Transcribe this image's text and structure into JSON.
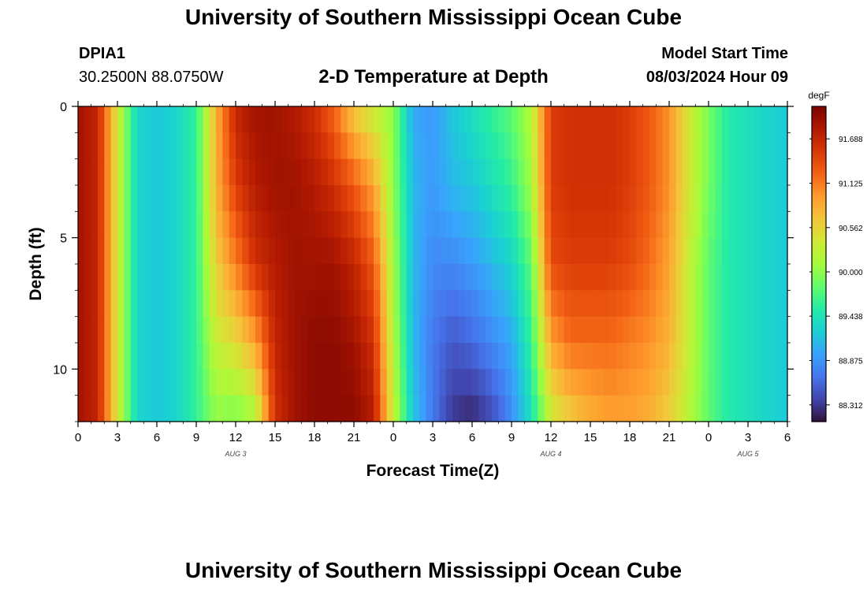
{
  "page": {
    "title": "University of Southern Mississippi Ocean Cube",
    "footer_title": "University of Southern Mississippi Ocean Cube",
    "station": "DPIA1",
    "coords": "30.2500N  88.0750W",
    "plot_title": "2-D Temperature at Depth",
    "model_start_label": "Model Start Time",
    "model_start_value": "08/03/2024 Hour 09"
  },
  "chart_data": {
    "type": "heatmap",
    "title": "2-D Temperature at Depth",
    "xlabel": "Forecast Time(Z)",
    "ylabel": "Depth (ft)",
    "x_ticks": [
      "0",
      "3",
      "6",
      "9",
      "12",
      "15",
      "18",
      "21",
      "0",
      "3",
      "6",
      "9",
      "12",
      "15",
      "18",
      "21",
      "0",
      "3",
      "6"
    ],
    "x_range_hours": [
      0,
      54
    ],
    "date_labels": [
      {
        "label": "AUG 3",
        "hour": 12
      },
      {
        "label": "AUG 4",
        "hour": 36
      },
      {
        "label": "AUG 5",
        "hour": 51
      }
    ],
    "y_ticks": [
      0,
      5,
      10
    ],
    "y_range_ft": [
      0,
      12
    ],
    "y_inverted": true,
    "colorbar": {
      "unit": "degF",
      "ticks": [
        "91.688",
        "91.125",
        "90.562",
        "90.000",
        "89.438",
        "88.875",
        "88.312"
      ],
      "min": 88.1,
      "max": 92.1,
      "colors": [
        "#30123b",
        "#4145ab",
        "#4675ed",
        "#39a2fc",
        "#1bcfd4",
        "#24eca6",
        "#61fc6c",
        "#a4fc3b",
        "#d1e834",
        "#f3c63a",
        "#fe9b2d",
        "#f36315",
        "#d93806",
        "#b11901",
        "#7a0402"
      ]
    },
    "x_hours": [
      0,
      1.5,
      3,
      4.5,
      6,
      7.5,
      9,
      10.5,
      12,
      13.5,
      15,
      16.5,
      18,
      19.5,
      21,
      22.5,
      24,
      25.5,
      27,
      28.5,
      30,
      31.5,
      33,
      34.5,
      36,
      37.5,
      39,
      40.5,
      42,
      43.5,
      45,
      46.5,
      48,
      49.5,
      51,
      52.5,
      54
    ],
    "depths_ft": [
      0,
      3,
      6,
      9,
      12
    ],
    "values_degF": [
      [
        91.9,
        91.7,
        90.4,
        89.3,
        89.2,
        89.3,
        89.6,
        90.8,
        91.7,
        91.9,
        91.9,
        91.8,
        91.6,
        91.2,
        90.6,
        90.3,
        90.0,
        89.0,
        88.9,
        89.2,
        89.4,
        89.6,
        89.8,
        90.2,
        91.5,
        91.6,
        91.6,
        91.6,
        91.5,
        91.3,
        91.0,
        90.4,
        89.9,
        89.5,
        89.4,
        89.3,
        89.2
      ],
      [
        91.9,
        91.7,
        90.4,
        89.3,
        89.2,
        89.3,
        89.6,
        90.8,
        91.5,
        91.8,
        91.9,
        91.9,
        91.8,
        91.6,
        91.3,
        90.9,
        90.0,
        89.1,
        88.9,
        89.1,
        89.2,
        89.4,
        89.6,
        90.1,
        91.5,
        91.6,
        91.6,
        91.6,
        91.5,
        91.3,
        91.0,
        90.4,
        89.9,
        89.5,
        89.4,
        89.3,
        89.2
      ],
      [
        91.9,
        91.7,
        90.4,
        89.3,
        89.2,
        89.3,
        89.6,
        90.6,
        91.1,
        91.6,
        91.8,
        91.9,
        91.9,
        91.9,
        91.7,
        91.3,
        90.1,
        89.1,
        88.8,
        88.8,
        88.9,
        89.1,
        89.3,
        89.8,
        91.4,
        91.5,
        91.5,
        91.5,
        91.4,
        91.2,
        90.9,
        90.3,
        89.8,
        89.5,
        89.4,
        89.3,
        89.2
      ],
      [
        91.9,
        91.7,
        90.4,
        89.3,
        89.2,
        89.3,
        89.6,
        90.3,
        90.5,
        90.9,
        91.7,
        91.9,
        92.0,
        92.0,
        91.9,
        91.6,
        90.2,
        89.1,
        88.7,
        88.5,
        88.6,
        88.8,
        89.0,
        89.6,
        90.9,
        91.2,
        91.2,
        91.2,
        91.1,
        91.0,
        90.8,
        90.3,
        89.8,
        89.5,
        89.4,
        89.3,
        89.2
      ],
      [
        91.9,
        91.7,
        90.4,
        89.3,
        89.2,
        89.3,
        89.6,
        90.0,
        89.9,
        90.1,
        91.6,
        91.9,
        92.0,
        92.0,
        92.0,
        91.8,
        90.3,
        89.2,
        88.7,
        88.3,
        88.2,
        88.4,
        88.8,
        89.4,
        90.3,
        90.6,
        90.8,
        90.9,
        90.9,
        90.8,
        90.6,
        90.2,
        89.8,
        89.5,
        89.4,
        89.3,
        89.2
      ]
    ]
  }
}
